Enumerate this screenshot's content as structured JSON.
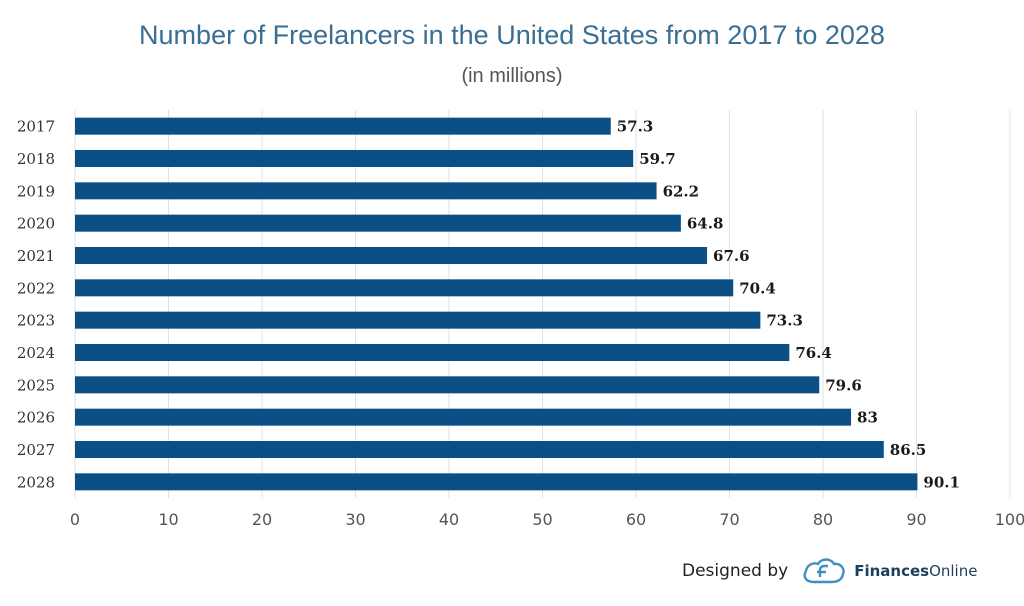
{
  "chart_data": {
    "type": "bar",
    "orientation": "horizontal",
    "title": "Number of Freelancers in the United States from 2017 to 2028",
    "subtitle": "(in millions)",
    "categories": [
      "2017",
      "2018",
      "2019",
      "2020",
      "2021",
      "2022",
      "2023",
      "2024",
      "2025",
      "2026",
      "2027",
      "2028"
    ],
    "values": [
      57.3,
      59.7,
      62.2,
      64.8,
      67.6,
      70.4,
      73.3,
      76.4,
      79.6,
      83,
      86.5,
      90.1
    ],
    "value_labels": [
      "57.3",
      "59.7",
      "62.2",
      "64.8",
      "67.6",
      "70.4",
      "73.3",
      "76.4",
      "79.6",
      "83",
      "86.5",
      "90.1"
    ],
    "xlim": [
      0,
      100
    ],
    "xticks": [
      0,
      10,
      20,
      30,
      40,
      50,
      60,
      70,
      80,
      90,
      100
    ],
    "grid": true,
    "bar_color": "#0a4f86"
  },
  "footer": {
    "designed_by": "Designed by",
    "brand_bold": "Finances",
    "brand_rest": "Online"
  },
  "colors": {
    "title": "#3a6f93",
    "brand": "#1d3f5e"
  },
  "icons": {
    "logo": "finances-online-logo-icon"
  }
}
